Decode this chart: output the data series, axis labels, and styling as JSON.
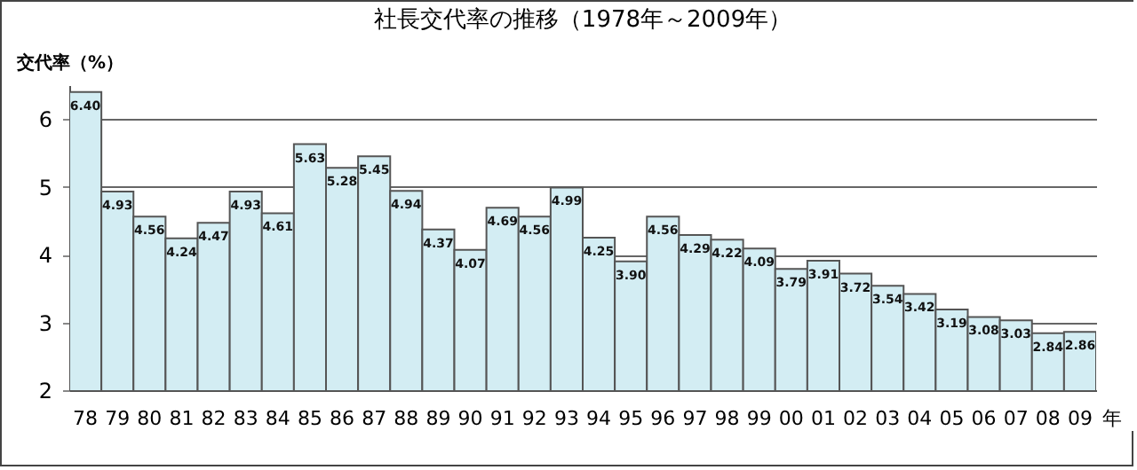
{
  "chart_data": {
    "type": "bar",
    "title": "社長交代率の推移（1978年～2009年）",
    "ylabel": "交代率（%）",
    "xlabel": "年",
    "categories": [
      "78",
      "79",
      "80",
      "81",
      "82",
      "83",
      "84",
      "85",
      "86",
      "87",
      "88",
      "89",
      "90",
      "91",
      "92",
      "93",
      "94",
      "95",
      "96",
      "97",
      "98",
      "99",
      "00",
      "01",
      "02",
      "03",
      "04",
      "05",
      "06",
      "07",
      "08",
      "09"
    ],
    "values": [
      6.4,
      4.93,
      4.56,
      4.24,
      4.47,
      4.93,
      4.61,
      5.63,
      5.28,
      5.45,
      4.94,
      4.37,
      4.07,
      4.69,
      4.56,
      4.99,
      4.25,
      3.9,
      4.56,
      4.29,
      4.22,
      4.09,
      3.79,
      3.91,
      3.72,
      3.54,
      3.42,
      3.19,
      3.08,
      3.03,
      2.84,
      2.86
    ],
    "value_labels": [
      "6.40",
      "4.93",
      "4.56",
      "4.24",
      "4.47",
      "4.93",
      "4.61",
      "5.63",
      "5.28",
      "5.45",
      "4.94",
      "4.37",
      "4.07",
      "4.69",
      "4.56",
      "4.99",
      "4.25",
      "3.90",
      "4.56",
      "4.29",
      "4.22",
      "4.09",
      "3.79",
      "3.91",
      "3.72",
      "3.54",
      "3.42",
      "3.19",
      "3.08",
      "3.03",
      "2.84",
      "2.86"
    ],
    "color": "#d3edf3",
    "ylim": [
      2,
      6.5
    ],
    "yticks": [
      2,
      3,
      4,
      5,
      6
    ],
    "grid": "y"
  }
}
